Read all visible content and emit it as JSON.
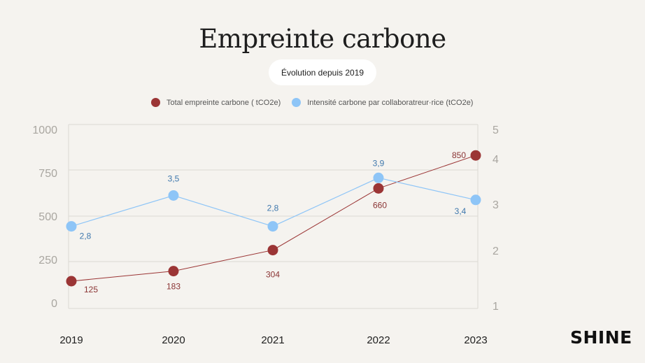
{
  "page": {
    "title": "Empreinte carbone",
    "subtitle": "Évolution depuis 2019",
    "brand": "SHINE"
  },
  "chart_data": {
    "type": "line",
    "categories": [
      "2019",
      "2020",
      "2021",
      "2022",
      "2023"
    ],
    "series": [
      {
        "name": "Total empreinte carbone ( tCO2e)",
        "axis": "left",
        "color": "#9b3535",
        "values": [
          125,
          183,
          304,
          660,
          850
        ],
        "labels": [
          "125",
          "183",
          "304",
          "660",
          "850"
        ]
      },
      {
        "name": "Intensité carbone par collaboratreur·rice  (tCO2e)",
        "axis": "right",
        "color": "#8ec5f7",
        "values": [
          2.8,
          3.5,
          2.8,
          3.9,
          3.4
        ],
        "labels": [
          "2,8",
          "3,5",
          "2,8",
          "3,9",
          "3,4"
        ]
      }
    ],
    "y_left": {
      "ticks": [
        "0",
        "250",
        "500",
        "750",
        "1000"
      ]
    },
    "y_right": {
      "ticks": [
        "1",
        "2",
        "3",
        "4",
        "5"
      ]
    },
    "grid": true,
    "legend_position": "top"
  }
}
